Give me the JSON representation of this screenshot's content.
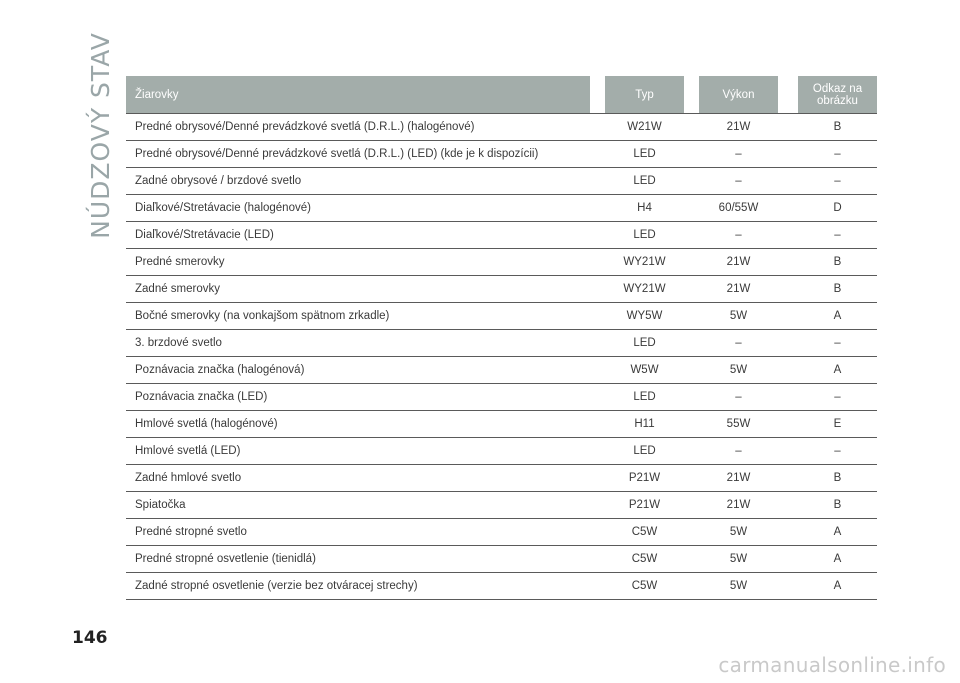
{
  "section_title": "NÚDZOVÝ STAV",
  "page_number": "146",
  "watermark": "carmanualsonline.info",
  "table": {
    "headers": {
      "name": "Žiarovky",
      "type": "Typ",
      "power": "Výkon",
      "reference_line1": "Odkaz na",
      "reference_line2": "obrázku"
    },
    "rows": [
      {
        "name": "Predné obrysové/Denné prevádzkové svetlá (D.R.L.) (halogénové)",
        "type": "W21W",
        "power": "21W",
        "ref": "B"
      },
      {
        "name": "Predné obrysové/Denné prevádzkové svetlá (D.R.L.) (LED) (kde je k dispozícii)",
        "type": "LED",
        "power": "–",
        "ref": "–"
      },
      {
        "name": "Zadné obrysové / brzdové svetlo",
        "type": "LED",
        "power": "–",
        "ref": "–"
      },
      {
        "name": "Diaľkové/Stretávacie (halogénové)",
        "type": "H4",
        "power": "60/55W",
        "ref": "D"
      },
      {
        "name": "Diaľkové/Stretávacie (LED)",
        "type": "LED",
        "power": "–",
        "ref": "–"
      },
      {
        "name": "Predné smerovky",
        "type": "WY21W",
        "power": "21W",
        "ref": "B"
      },
      {
        "name": "Zadné smerovky",
        "type": "WY21W",
        "power": "21W",
        "ref": "B"
      },
      {
        "name": "Bočné smerovky (na vonkajšom spätnom zrkadle)",
        "type": "WY5W",
        "power": "5W",
        "ref": "A"
      },
      {
        "name": "3. brzdové svetlo",
        "type": "LED",
        "power": "–",
        "ref": "–"
      },
      {
        "name": "Poznávacia značka (halogénová)",
        "type": "W5W",
        "power": "5W",
        "ref": "A"
      },
      {
        "name": "Poznávacia značka (LED)",
        "type": "LED",
        "power": "–",
        "ref": "–"
      },
      {
        "name": "Hmlové svetlá (halogénové)",
        "type": "H11",
        "power": "55W",
        "ref": "E"
      },
      {
        "name": "Hmlové svetlá (LED)",
        "type": "LED",
        "power": "–",
        "ref": "–"
      },
      {
        "name": "Zadné hmlové svetlo",
        "type": "P21W",
        "power": "21W",
        "ref": "B"
      },
      {
        "name": "Spiatočka",
        "type": "P21W",
        "power": "21W",
        "ref": "B"
      },
      {
        "name": "Predné stropné svetlo",
        "type": "C5W",
        "power": "5W",
        "ref": "A"
      },
      {
        "name": "Predné stropné osvetlenie (tienidlá)",
        "type": "C5W",
        "power": "5W",
        "ref": "A"
      },
      {
        "name": "Zadné stropné osvetlenie (verzie bez otváracej strechy)",
        "type": "C5W",
        "power": "5W",
        "ref": "A"
      }
    ]
  },
  "colors": {
    "header_bg": "#a3adaa",
    "section_title": "#9aa6a8",
    "rule": "#5a5a5a"
  }
}
